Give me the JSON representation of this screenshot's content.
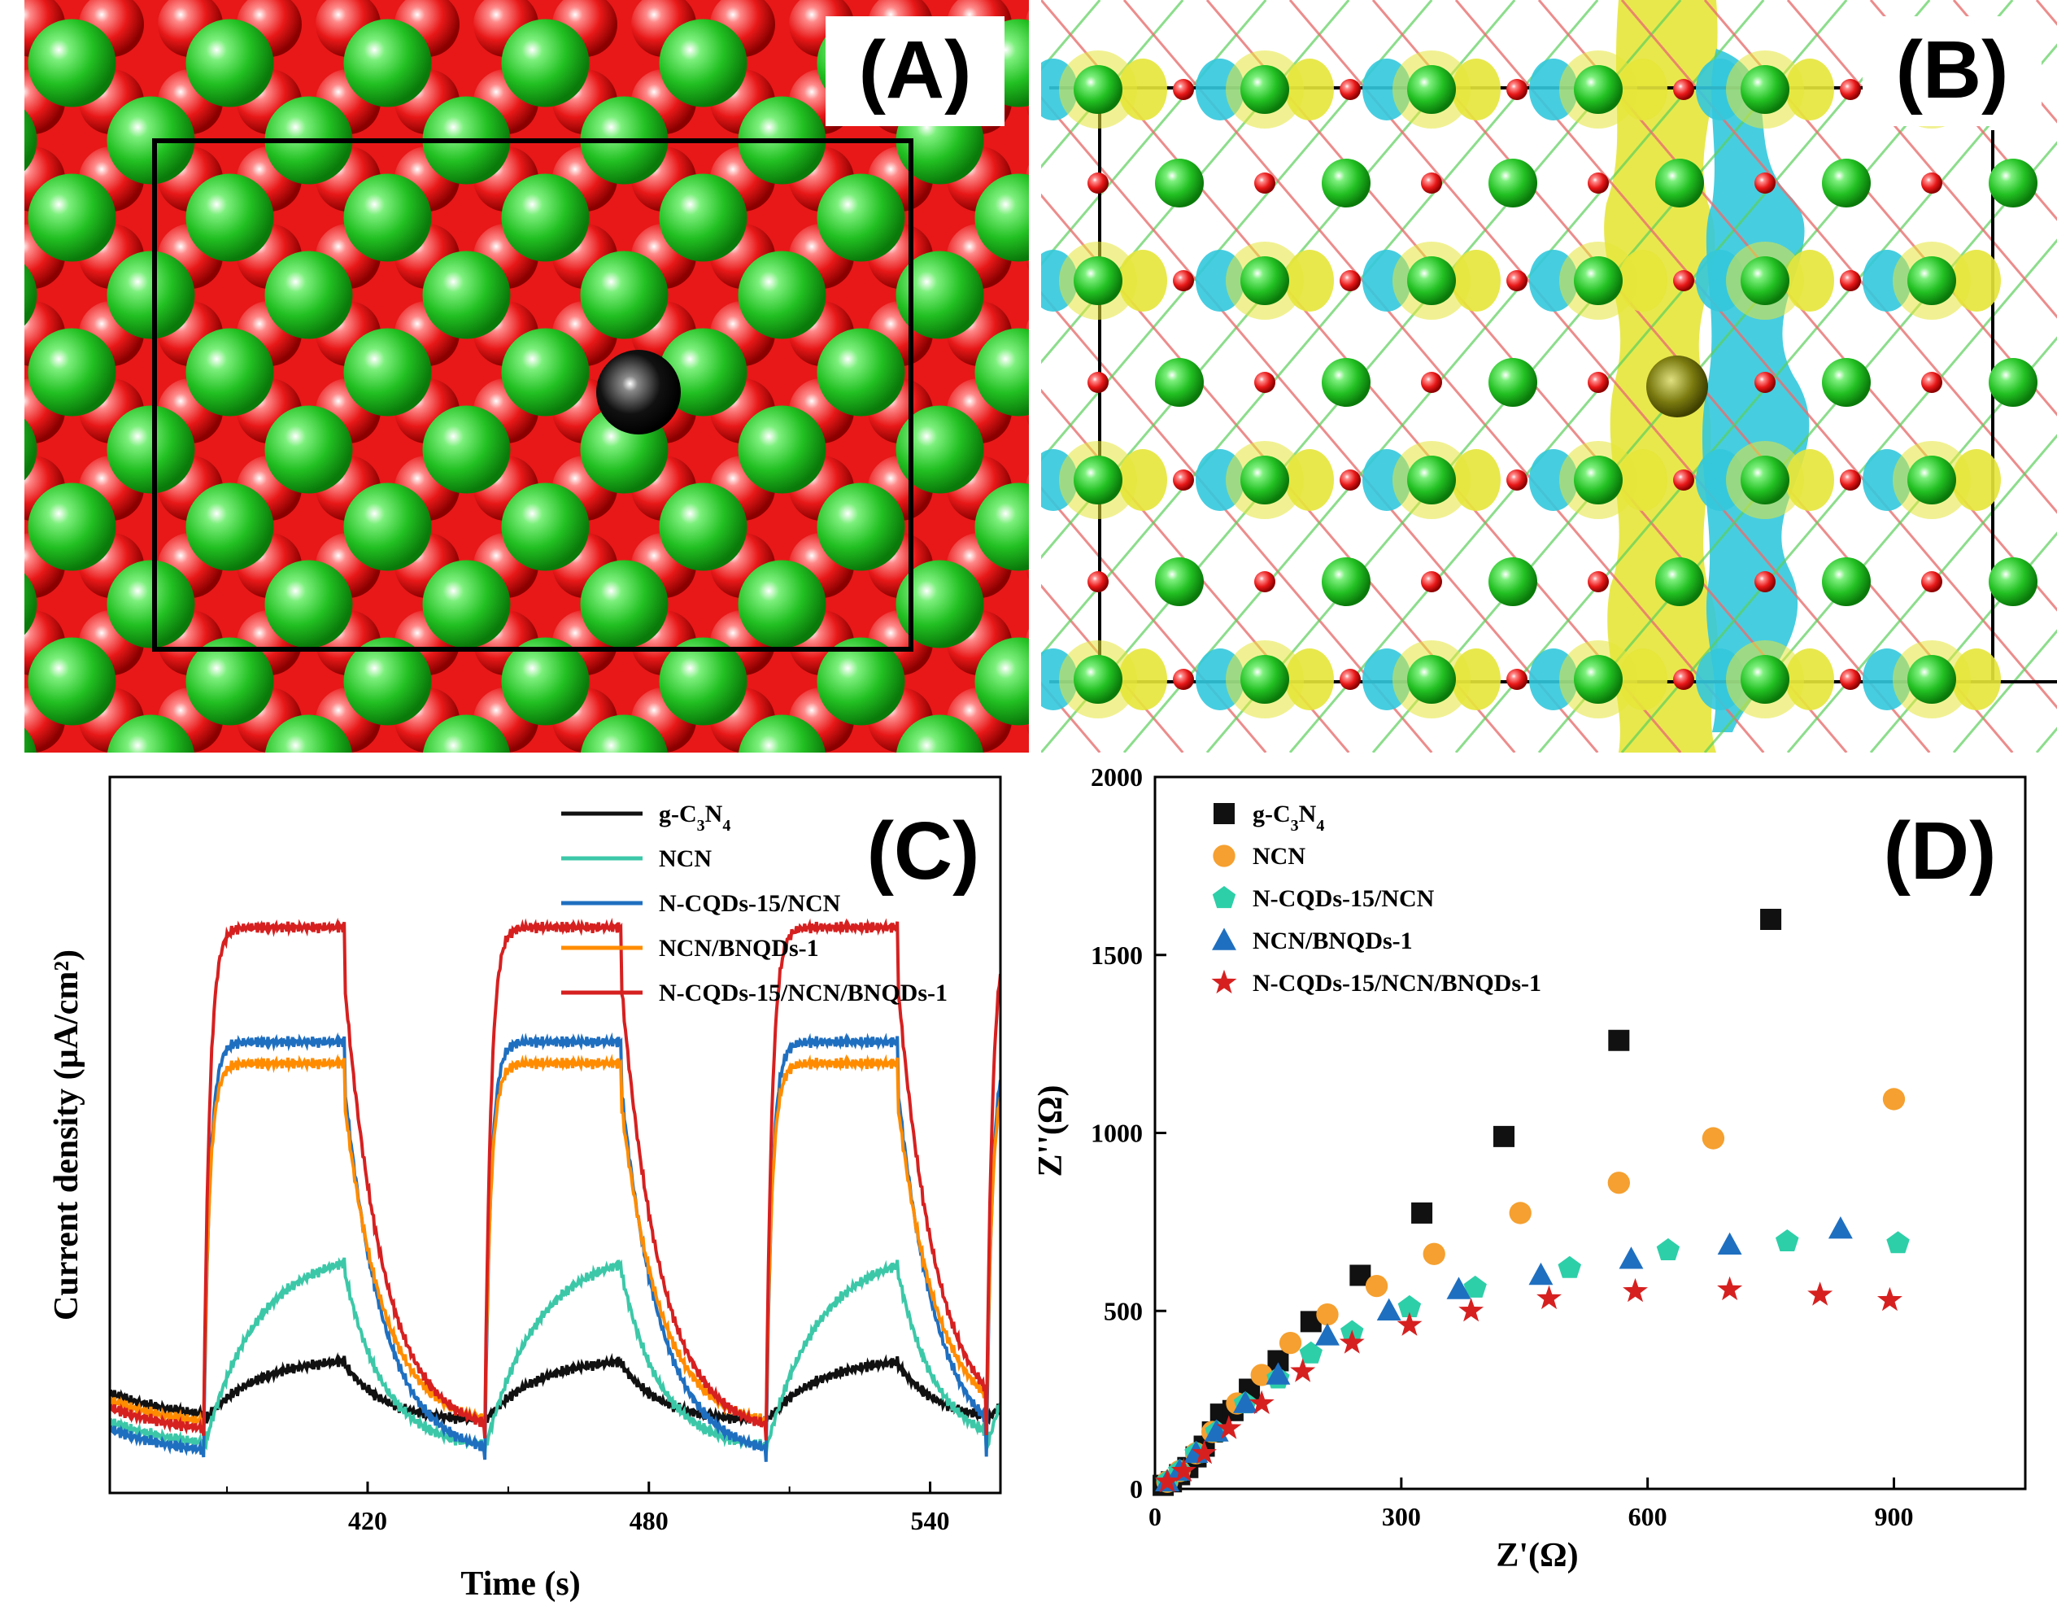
{
  "panels": {
    "a": {
      "letter": "(A)"
    },
    "b": {
      "letter": "(B)"
    }
  },
  "colors": {
    "atom_green": "#22c022",
    "atom_red": "#e81818",
    "dopant_black": "#111111",
    "charge_yellow": "#e6e63a",
    "charge_cyan": "#33c8dd"
  },
  "chart_data": [
    {
      "panel": "(C)",
      "type": "line",
      "title": "",
      "xlabel": "Time (s)",
      "ylabel": "Current density (µA/cm²)",
      "xlim": [
        365,
        555
      ],
      "xticks": [
        "420",
        "480",
        "540"
      ],
      "xtick_values": [
        420,
        480,
        540
      ],
      "yticks": [],
      "legend_position": "top-right",
      "on_periods": [
        [
          385,
          415
        ],
        [
          445,
          474
        ],
        [
          505,
          533
        ],
        [
          552,
          580
        ]
      ],
      "series": [
        {
          "name": "g-C3N4",
          "label_html": [
            "g-C",
            "3",
            "N",
            "4"
          ],
          "color": "#111111",
          "off_level": 0.1,
          "on_level": 0.19,
          "rise": "slow"
        },
        {
          "name": "NCN",
          "label_html": [
            "NCN"
          ],
          "color": "#3cc8a8",
          "off_level": 0.06,
          "on_level": 0.34,
          "rise": "slow"
        },
        {
          "name": "N-CQDs-15/NCN",
          "label_html": [
            "N-CQDs-15/NCN"
          ],
          "color": "#1f6fc0",
          "off_level": 0.05,
          "on_level": 0.63,
          "rise": "fast"
        },
        {
          "name": "NCN/BNQDs-1",
          "label_html": [
            "NCN/BNQDs-1"
          ],
          "color": "#ff8c00",
          "off_level": 0.09,
          "on_level": 0.6,
          "rise": "fast"
        },
        {
          "name": "N-CQDs-15/NCN/BNQDs-1",
          "label_html": [
            "N-CQDs-15/NCN/BNQDs-1"
          ],
          "color": "#d62020",
          "off_level": 0.08,
          "on_level": 0.79,
          "rise": "fast"
        }
      ]
    },
    {
      "panel": "(D)",
      "type": "scatter",
      "title": "",
      "xlabel": "Z'(Ω)",
      "ylabel": "Z''(Ω)",
      "xlim": [
        0,
        1000
      ],
      "ylim": [
        0,
        2000
      ],
      "xticks": [
        "0",
        "300",
        "600",
        "900"
      ],
      "yticks": [
        "0",
        "500",
        "1000",
        "1500",
        "2000"
      ],
      "legend_position": "top-left",
      "series": [
        {
          "name": "g-C3N4",
          "marker": "square",
          "color": "#111111",
          "x": [
            10,
            20,
            30,
            40,
            50,
            60,
            70,
            80,
            95,
            115,
            150,
            190,
            250,
            325,
            425,
            565,
            750
          ],
          "y": [
            10,
            20,
            40,
            60,
            90,
            120,
            160,
            210,
            220,
            280,
            360,
            470,
            600,
            775,
            990,
            1260,
            1600
          ]
        },
        {
          "name": "NCN",
          "marker": "circle",
          "color": "#f5a030",
          "x": [
            15,
            30,
            50,
            70,
            100,
            130,
            165,
            210,
            270,
            340,
            445,
            565,
            680,
            900
          ],
          "y": [
            20,
            50,
            100,
            160,
            240,
            320,
            410,
            490,
            570,
            660,
            775,
            860,
            985,
            1095
          ]
        },
        {
          "name": "N-CQDs-15/NCN",
          "marker": "pentagon",
          "color": "#2dcfa8",
          "x": [
            15,
            30,
            50,
            75,
            110,
            150,
            190,
            240,
            310,
            390,
            505,
            625,
            770,
            905
          ],
          "y": [
            20,
            50,
            100,
            160,
            240,
            310,
            380,
            440,
            510,
            565,
            620,
            670,
            695,
            690
          ]
        },
        {
          "name": "NCN/BNQDs-1",
          "marker": "triangle",
          "color": "#1f6fc0",
          "x": [
            15,
            30,
            50,
            75,
            110,
            150,
            210,
            285,
            370,
            470,
            580,
            700,
            835
          ],
          "y": [
            20,
            50,
            100,
            160,
            240,
            320,
            430,
            500,
            560,
            600,
            645,
            685,
            730
          ]
        },
        {
          "name": "N-CQDs-15/NCN/BNQDs-1",
          "marker": "star",
          "color": "#d62020",
          "x": [
            15,
            35,
            60,
            90,
            130,
            180,
            240,
            310,
            385,
            480,
            585,
            700,
            810,
            895
          ],
          "y": [
            20,
            50,
            100,
            170,
            240,
            330,
            410,
            460,
            500,
            535,
            555,
            560,
            545,
            530
          ]
        }
      ],
      "legend_labels": [
        [
          "g-C",
          "3",
          "N",
          "4"
        ],
        [
          "NCN"
        ],
        [
          "N-CQDs-15/NCN"
        ],
        [
          "NCN/BNQDs-1"
        ],
        [
          "N-CQDs-15/NCN/BNQDs-1"
        ]
      ]
    }
  ]
}
